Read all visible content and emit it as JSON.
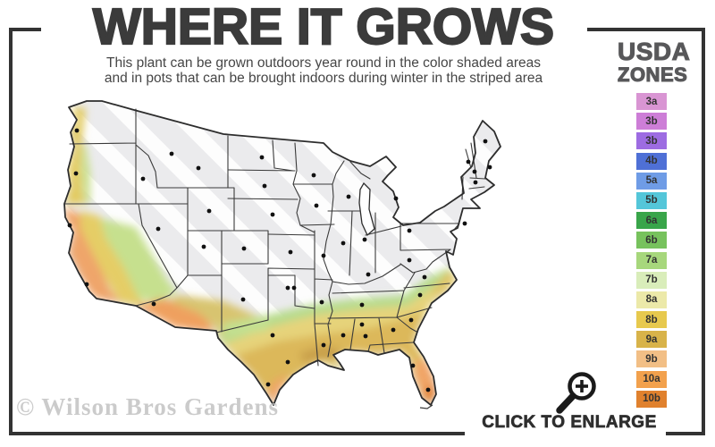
{
  "header": {
    "title": "WHERE IT GROWS",
    "subtitle_line1": "This plant can be grown outdoors year round in the color shaded areas",
    "subtitle_line2": "and in pots that can be brought indoors during winter in the striped area"
  },
  "legend": {
    "title_line1": "USDA",
    "title_line2": "ZONES",
    "zones": [
      {
        "label": "3a",
        "color": "#d995d3"
      },
      {
        "label": "3b",
        "color": "#cd7ed7"
      },
      {
        "label": "3b",
        "color": "#9d6ce2"
      },
      {
        "label": "4b",
        "color": "#4f70d6"
      },
      {
        "label": "5a",
        "color": "#6f9ce6"
      },
      {
        "label": "5b",
        "color": "#54c6d9"
      },
      {
        "label": "6a",
        "color": "#39a54a"
      },
      {
        "label": "6b",
        "color": "#77c25d"
      },
      {
        "label": "7a",
        "color": "#a7d77c"
      },
      {
        "label": "7b",
        "color": "#d9edba"
      },
      {
        "label": "8a",
        "color": "#ece9a9"
      },
      {
        "label": "8b",
        "color": "#e7c94e"
      },
      {
        "label": "9a",
        "color": "#d8b34a"
      },
      {
        "label": "9b",
        "color": "#f2bf86"
      },
      {
        "label": "10a",
        "color": "#f2a14d"
      },
      {
        "label": "10b",
        "color": "#e0812e"
      }
    ]
  },
  "map": {
    "colors": {
      "base": "#ebebed",
      "stripe": "#ffffff",
      "border": "#2d2d2d",
      "state_line": "#3a3a3a",
      "lake": "#ffffff",
      "dot": "#111111",
      "south_yellow": "#e6d37a",
      "green_fringe": "#b7db8d",
      "gold_band": "#dcb85a",
      "dark_gold": "#c9a04b",
      "orange": "#f0a466",
      "dark_orange": "#e07a2c",
      "coast_yellow": "#e2ca5f",
      "coast_green": "#c9df8d",
      "ca_orange": "#efa56a",
      "ca_yellow": "#e5cd66",
      "sierra_green": "#c6e08e",
      "az_orange": "#efa05e",
      "sw_gold": "#d8c470",
      "nm_green": "#c3e090",
      "se_gold": "#e0c567"
    }
  },
  "footer": {
    "watermark": "© Wilson Bros Gardens",
    "enlarge_label": "CLICK TO ENLARGE"
  }
}
